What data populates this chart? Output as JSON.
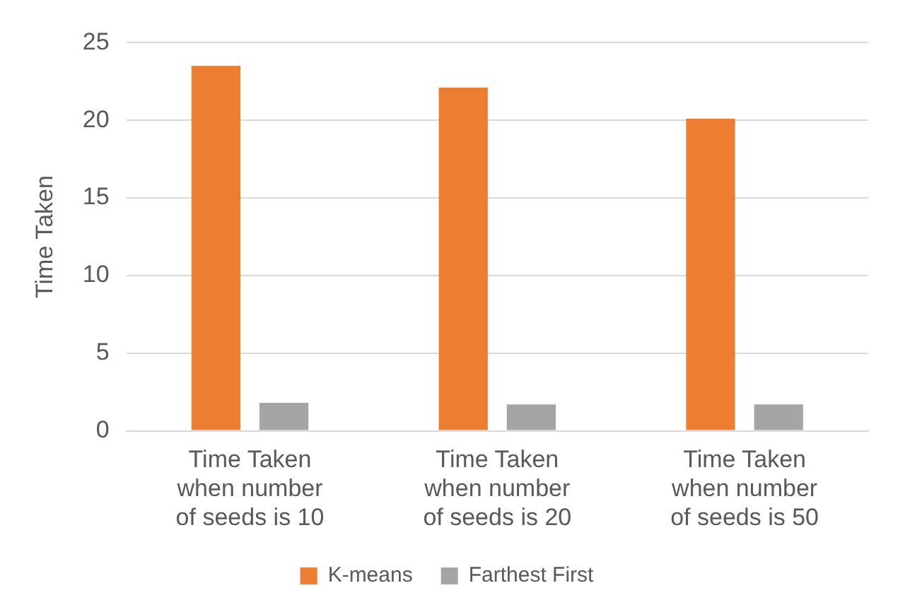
{
  "chart_data": {
    "type": "bar",
    "ylabel": "Time Taken",
    "categories": [
      "Time Taken when number of seeds is 10",
      "Time Taken when number of seeds is 20",
      "Time Taken when number of seeds is 50"
    ],
    "series": [
      {
        "name": "K-means",
        "color": "#ed7d31",
        "values": [
          23.5,
          22.1,
          20.1
        ]
      },
      {
        "name": "Farthest First",
        "color": "#a5a5a5",
        "values": [
          1.8,
          1.7,
          1.7
        ]
      }
    ],
    "ylim": [
      0,
      25
    ],
    "yticks": [
      0,
      5,
      10,
      15,
      20,
      25
    ],
    "grid": "y",
    "legend": "bottom"
  }
}
